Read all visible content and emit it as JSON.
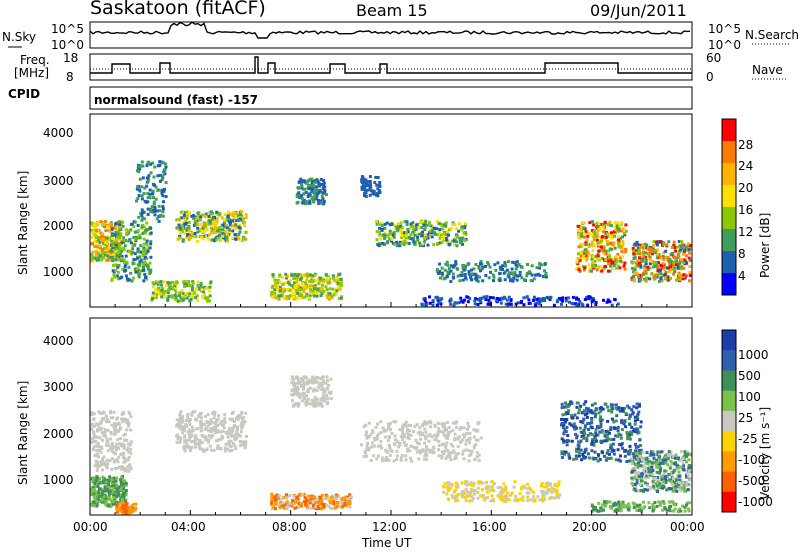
{
  "header": {
    "title": "Saskatoon (fitACF)",
    "beam": "Beam 15",
    "date": "09/Jun/2011"
  },
  "panels": {
    "nsky": {
      "label": "N.Sky",
      "ticks": [
        "10^5",
        "10^0"
      ],
      "right_label": "N.Search",
      "right_ticks": [
        "10^5",
        "10^0"
      ]
    },
    "freq": {
      "label_line1": "Freq.",
      "label_line2": "[MHz]",
      "ticks": [
        "18",
        "8"
      ],
      "right_label": "Nave",
      "right_ticks": [
        "60",
        "0"
      ]
    },
    "cpid": {
      "label": "CPID",
      "mode": "normalsound (fast) -157"
    }
  },
  "chart_data": [
    {
      "type": "heatmap",
      "name": "power",
      "ylabel": "Slant Range [km]",
      "yticks": [
        "4000",
        "3000",
        "2000",
        "1000"
      ],
      "colorbar": {
        "label": "Power [dB]",
        "ticks": [
          "28",
          "24",
          "20",
          "16",
          "12",
          "8",
          "4"
        ],
        "colors": [
          "#ff0000",
          "#ff7a00",
          "#ffb400",
          "#ffe000",
          "#88c800",
          "#3f9f5a",
          "#1f5fb0",
          "#0000ff"
        ]
      }
    },
    {
      "type": "heatmap",
      "name": "velocity",
      "ylabel": "Slant Range [km]",
      "yticks": [
        "4000",
        "3000",
        "2000",
        "1000"
      ],
      "colorbar": {
        "label": "Velocity [m s⁻¹]",
        "ticks": [
          "1000",
          "500",
          "100",
          "25",
          "-25",
          "-100",
          "-500",
          "-1000"
        ],
        "colors": [
          "#1a3fa8",
          "#2f60b0",
          "#3f8f5a",
          "#7ac24a",
          "#c8c8c0",
          "#ffd200",
          "#ff9a00",
          "#ff6000",
          "#ff0000"
        ]
      }
    }
  ],
  "xaxis": {
    "label": "Time UT",
    "ticks": [
      "00:00",
      "04:00",
      "08:00",
      "12:00",
      "16:00",
      "20:00",
      "00:00"
    ]
  }
}
